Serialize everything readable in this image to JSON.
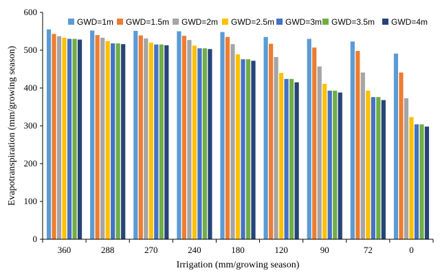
{
  "chart_data": {
    "type": "bar",
    "xlabel": "Irrigation (mm/growing season)",
    "ylabel": "Evapotranspiration (mm/growing season)",
    "ylim": [
      0,
      600
    ],
    "yticks": [
      0,
      100,
      200,
      300,
      400,
      500,
      600
    ],
    "grid": false,
    "legend_position": "top",
    "categories": [
      "360",
      "288",
      "270",
      "240",
      "180",
      "120",
      "90",
      "72",
      "0"
    ],
    "series": [
      {
        "name": "GWD=1m",
        "color": "#5B9BD5",
        "values": [
          555,
          552,
          551,
          550,
          548,
          535,
          530,
          523,
          491
        ]
      },
      {
        "name": "GWD=1.5m",
        "color": "#ED7D31",
        "values": [
          543,
          540,
          539,
          538,
          535,
          517,
          507,
          498,
          441
        ]
      },
      {
        "name": "GWD=2m",
        "color": "#A5A5A5",
        "values": [
          537,
          533,
          531,
          527,
          516,
          482,
          457,
          441,
          373
        ]
      },
      {
        "name": "GWD=2.5m",
        "color": "#FFC000",
        "values": [
          533,
          524,
          520,
          512,
          489,
          440,
          411,
          393,
          323
        ]
      },
      {
        "name": "GWD=3m",
        "color": "#4472C4",
        "values": [
          530,
          518,
          515,
          505,
          476,
          424,
          393,
          376,
          304
        ]
      },
      {
        "name": "GWD=3.5m",
        "color": "#70AD47",
        "values": [
          530,
          518,
          515,
          505,
          476,
          424,
          393,
          376,
          304
        ]
      },
      {
        "name": "GWD=4m",
        "color": "#264478",
        "values": [
          528,
          516,
          513,
          503,
          472,
          415,
          388,
          368,
          298
        ]
      }
    ]
  }
}
